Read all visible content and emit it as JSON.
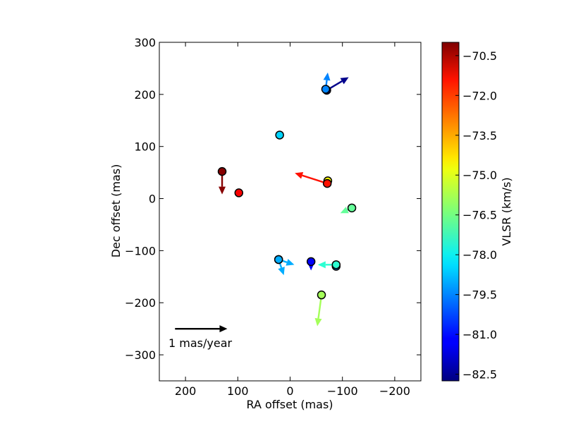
{
  "chart_data": {
    "type": "scatter",
    "title": "",
    "xlabel": "RA offset (mas)",
    "ylabel": "Dec offset (mas)",
    "xlim": [
      250,
      -250
    ],
    "ylim": [
      -350,
      300
    ],
    "x_ticks": [
      200,
      100,
      0,
      -100,
      -200
    ],
    "x_tick_labels": [
      "200",
      "100",
      "0",
      "−100",
      "−200"
    ],
    "y_ticks": [
      300,
      200,
      100,
      0,
      -100,
      -200,
      -300
    ],
    "y_tick_labels": [
      "300",
      "200",
      "100",
      "0",
      "−100",
      "−200",
      "−300"
    ],
    "grid": false,
    "colorbar": {
      "label": "VLSR (km/s)",
      "range": [
        -82.75,
        -70.0
      ],
      "colormap": "jet",
      "ticks": [
        -70.5,
        -72.0,
        -73.5,
        -75.0,
        -76.5,
        -78.0,
        -79.5,
        -81.0,
        -82.5
      ],
      "tick_labels": [
        "−70.5",
        "−72.0",
        "−73.5",
        "−75.0",
        "−76.5",
        "−78.0",
        "−79.5",
        "−81.0",
        "−82.5"
      ]
    },
    "scale_arrow": {
      "label": "1 mas/year",
      "pm_ra": 1.0,
      "pm_dec": 0.0,
      "origin_ra": 220,
      "origin_dec": -250
    },
    "proper_motion_scale_mas_per_masyr": 100,
    "points": [
      {
        "ra": -70,
        "dec": 208,
        "vlsr": -82.6,
        "pm_ra": 0.42,
        "pm_dec": 0.25
      },
      {
        "ra": -68,
        "dec": 210,
        "vlsr": -79.5,
        "pm_ra": 0.04,
        "pm_dec": 0.32
      },
      {
        "ra": 20,
        "dec": 122,
        "vlsr": -78.5
      },
      {
        "ra": 130,
        "dec": 52,
        "vlsr": -70.1,
        "pm_ra": 0.0,
        "pm_dec": -0.44
      },
      {
        "ra": 98,
        "dec": 11,
        "vlsr": -71.5
      },
      {
        "ra": -72,
        "dec": 34,
        "vlsr": -74.8
      },
      {
        "ra": -71,
        "dec": 29,
        "vlsr": -71.8,
        "pm_ra": -0.62,
        "pm_dec": 0.2
      },
      {
        "ra": -118,
        "dec": -18,
        "vlsr": -76.7,
        "pm_ra": -0.22,
        "pm_dec": -0.1
      },
      {
        "ra": 22,
        "dec": -117,
        "vlsr": -79.0,
        "pm_ra": 0.3,
        "pm_dec": -0.1
      },
      {
        "ra": 22,
        "dec": -117,
        "vlsr": -79.0,
        "pm_ra": 0.1,
        "pm_dec": -0.3
      },
      {
        "ra": -40,
        "dec": -121,
        "vlsr": -81.2,
        "pm_ra": 0.0,
        "pm_dec": -0.17
      },
      {
        "ra": -88,
        "dec": -130,
        "vlsr": -79.3
      },
      {
        "ra": -88,
        "dec": -127,
        "vlsr": -77.4,
        "pm_ra": -0.35,
        "pm_dec": 0.0
      },
      {
        "ra": -60,
        "dec": -185,
        "vlsr": -75.9,
        "pm_ra": -0.08,
        "pm_dec": -0.6
      }
    ]
  }
}
